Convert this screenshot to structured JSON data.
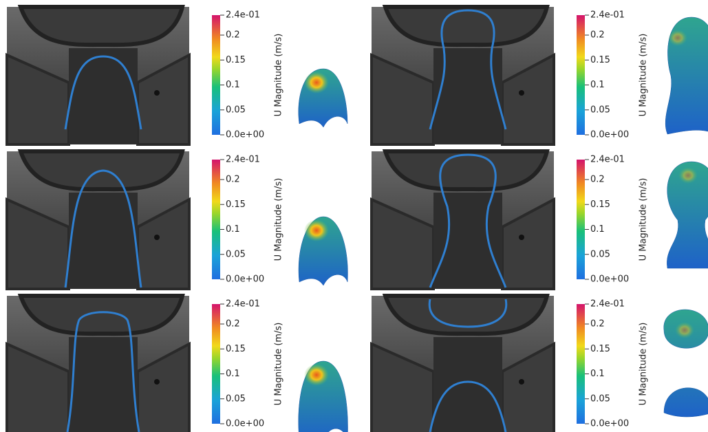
{
  "panels": [
    {
      "colorbar": {
        "title": "U Magnitude (m/s)",
        "lim": [
          0,
          0.24
        ],
        "ticks": [
          {
            "value": 0.24,
            "label": "2.4e-01"
          },
          0.2,
          0.15,
          0.1,
          0.05,
          {
            "value": 0,
            "label": "0.0e+00"
          }
        ]
      }
    },
    {
      "colorbar": {
        "title": "U Magnitude (m/s)",
        "lim": [
          0,
          0.24
        ],
        "ticks": [
          {
            "value": 0.24,
            "label": "2.4e-01"
          },
          0.2,
          0.15,
          0.1,
          0.05,
          {
            "value": 0,
            "label": "0.0e+00"
          }
        ]
      }
    },
    {
      "colorbar": {
        "title": "U Magnitude (m/s)",
        "lim": [
          0,
          0.24
        ],
        "ticks": [
          {
            "value": 0.24,
            "label": "2.4e-01"
          },
          0.2,
          0.15,
          0.1,
          0.05,
          {
            "value": 0,
            "label": "0.0e+00"
          }
        ]
      }
    },
    {
      "colorbar": {
        "title": "U Magnitude (m/s)",
        "lim": [
          0,
          0.24
        ],
        "ticks": [
          {
            "value": 0.24,
            "label": "2.4e-01"
          },
          0.2,
          0.15,
          0.1,
          0.05,
          {
            "value": 0,
            "label": "0.0e+00"
          }
        ]
      }
    },
    {
      "colorbar": {
        "title": "U Magnitude (m/s)",
        "lim": [
          0,
          0.24
        ],
        "ticks": [
          {
            "value": 0.24,
            "label": "2.4e-01"
          },
          0.2,
          0.15,
          0.1,
          0.05,
          {
            "value": 0,
            "label": "0.0e+00"
          }
        ]
      }
    },
    {
      "colorbar": {
        "title": "U Magnitude (m/s)",
        "lim": [
          0,
          0.24
        ],
        "ticks": [
          {
            "value": 0.24,
            "label": "2.4e-01"
          },
          0.2,
          0.15,
          0.1,
          0.05,
          {
            "value": 0,
            "label": "0.0e+00"
          }
        ]
      }
    }
  ]
}
